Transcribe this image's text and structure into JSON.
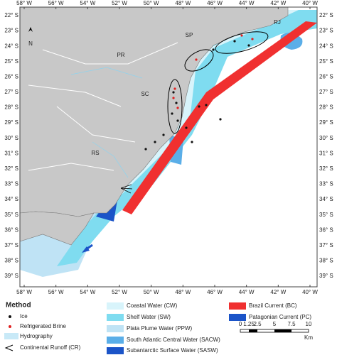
{
  "map": {
    "lon_labels": [
      "58° W",
      "56° W",
      "54° W",
      "52° W",
      "50° W",
      "48° W",
      "46° W",
      "44° W",
      "42° W",
      "40° W"
    ],
    "lat_labels": [
      "22° S",
      "23° S",
      "24° S",
      "25° S",
      "26° S",
      "27° S",
      "28° S",
      "29° S",
      "30° S",
      "31° S",
      "32° S",
      "33° S",
      "34° S",
      "35° S",
      "36° S",
      "37° S",
      "38° S",
      "39° S"
    ],
    "regions": {
      "sp": "SP",
      "rj": "RJ",
      "pr": "PR",
      "sc": "SC",
      "rs": "RS"
    },
    "north": "N"
  },
  "legend": {
    "method_title": "Method",
    "ice": "Ice",
    "brine": "Refrigerated Brine",
    "hydrography": "Hydrography",
    "runoff": "Continental Runoff (CR)",
    "cw": "Coastal Water (CW)",
    "sw": "Shelf Water (SW)",
    "ppw": "Plata Plume Water (PPW)",
    "sacw": "South Atlantic Central Water (SACW)",
    "sasw": "Subantarctic Surface Water (SASW)",
    "bc": "Brazil Current (BC)",
    "pc": "Patagonian Current (PC)"
  },
  "scale": {
    "labels": [
      "0",
      "1.25",
      "2.5",
      "5",
      "7.5",
      "10"
    ],
    "unit": "Km"
  }
}
